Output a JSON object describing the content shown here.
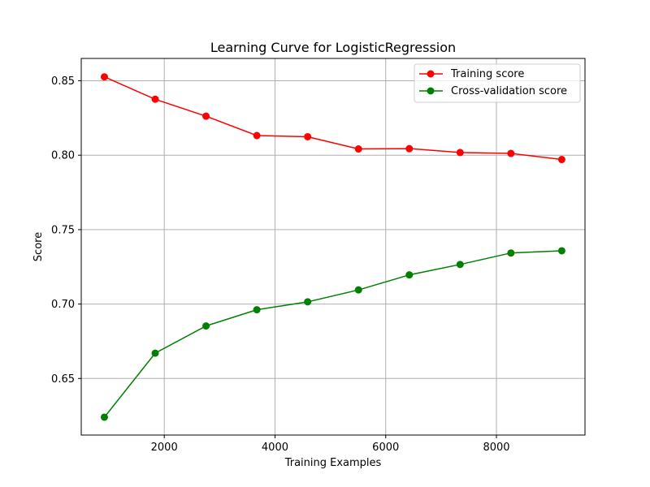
{
  "chart_data": {
    "type": "line",
    "title": "Learning Curve for LogisticRegression",
    "xlabel": "Training Examples",
    "ylabel": "Score",
    "xlim": [
      500,
      9600
    ],
    "ylim": [
      0.612,
      0.865
    ],
    "x_ticks": [
      2000,
      4000,
      6000,
      8000
    ],
    "x_tick_labels": [
      "2000",
      "4000",
      "6000",
      "8000"
    ],
    "y_ticks": [
      0.65,
      0.7,
      0.75,
      0.8,
      0.85
    ],
    "y_tick_labels": [
      "0.65",
      "0.70",
      "0.75",
      "0.80",
      "0.85"
    ],
    "grid": true,
    "legend_position": "top-right",
    "x": [
      918,
      1836,
      2754,
      3672,
      4590,
      5508,
      6426,
      7344,
      8262,
      9180
    ],
    "series": [
      {
        "name": "Training score",
        "color": "#ff0000",
        "values": [
          0.8526,
          0.8376,
          0.8262,
          0.8132,
          0.8124,
          0.8042,
          0.8044,
          0.8018,
          0.8012,
          0.7971
        ]
      },
      {
        "name": "Cross-validation score",
        "color": "#008000",
        "values": [
          0.624,
          0.667,
          0.6853,
          0.6962,
          0.7015,
          0.7095,
          0.7196,
          0.7266,
          0.7343,
          0.7358
        ]
      }
    ]
  }
}
